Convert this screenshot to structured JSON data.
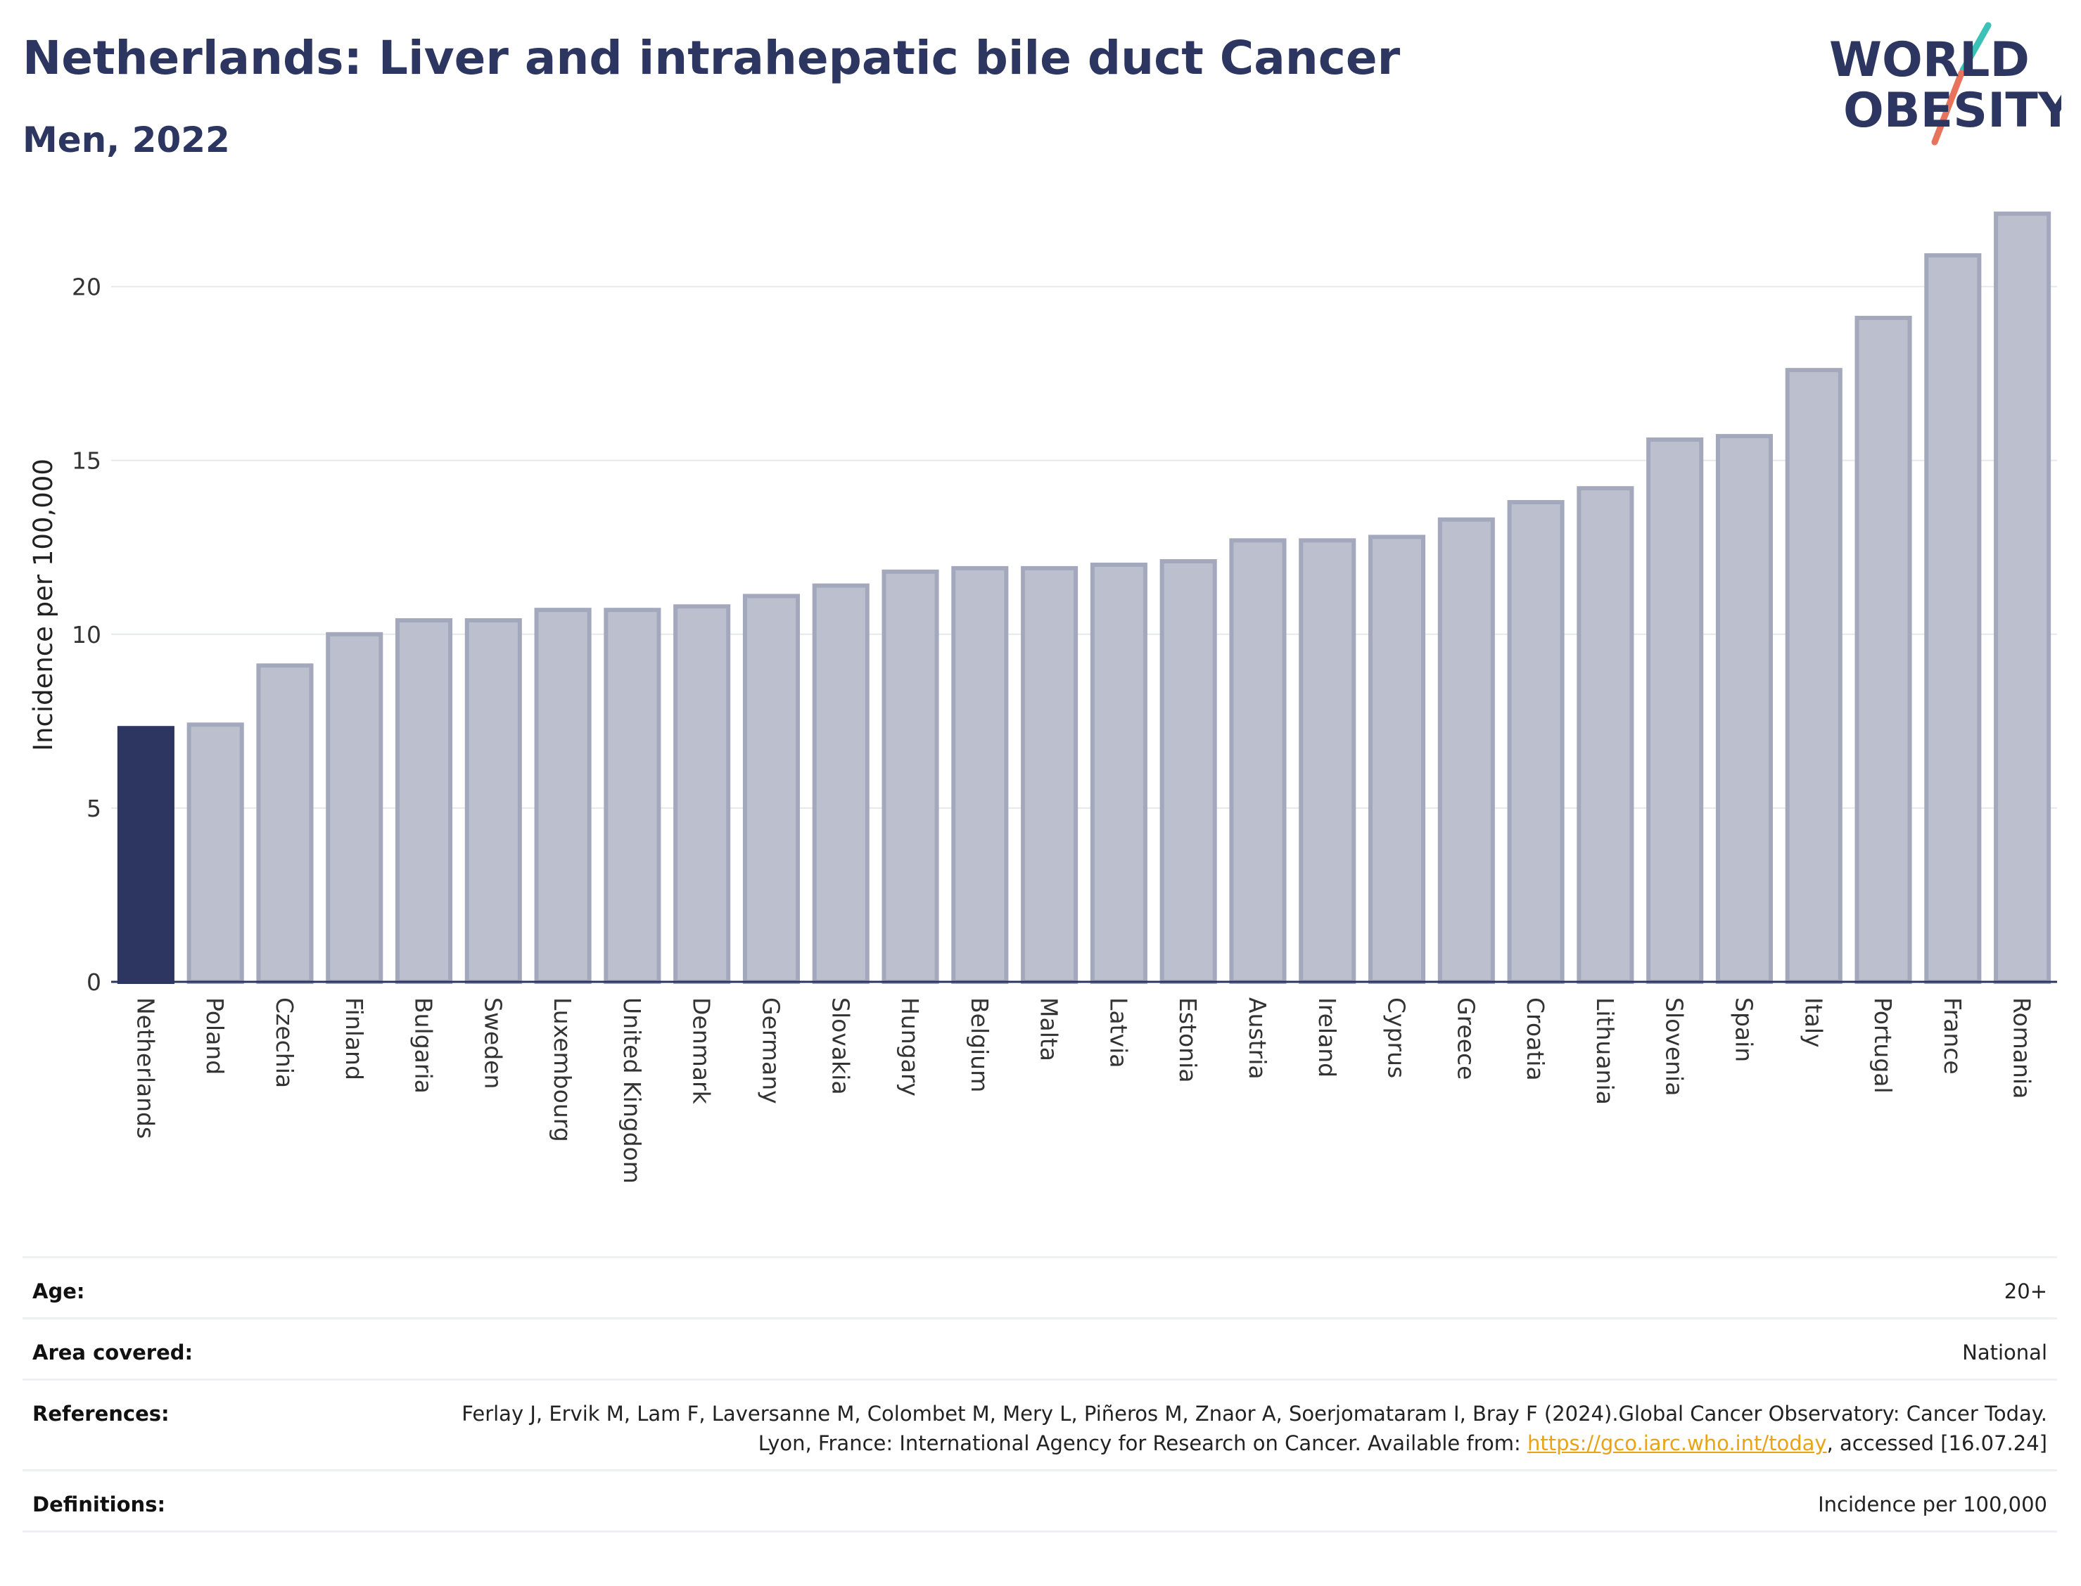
{
  "header": {
    "title": "Netherlands: Liver and intrahepatic bile duct Cancer",
    "subtitle": "Men, 2022"
  },
  "logo": {
    "line1": "WORLD",
    "line2": "OBESITY",
    "colors": {
      "text": "#2c3660",
      "teal": "#3cc1b7",
      "coral": "#e8725c"
    }
  },
  "chart_data": {
    "type": "bar",
    "title": "Netherlands: Liver and intrahepatic bile duct Cancer",
    "subtitle": "Men, 2022",
    "xlabel": "",
    "ylabel": "Incidence per 100,000",
    "ylim": [
      0,
      22.5
    ],
    "yticks": [
      0,
      5,
      10,
      15,
      20
    ],
    "grid": true,
    "highlight": "Netherlands",
    "colors": {
      "highlight": "#2c3660",
      "bar": "#bcc0ce",
      "bar_border": "#a3a8bd",
      "grid": "#e6e8ee"
    },
    "categories": [
      "Netherlands",
      "Poland",
      "Czechia",
      "Finland",
      "Bulgaria",
      "Sweden",
      "Luxembourg",
      "United Kingdom",
      "Denmark",
      "Germany",
      "Slovakia",
      "Hungary",
      "Belgium",
      "Malta",
      "Latvia",
      "Estonia",
      "Austria",
      "Ireland",
      "Cyprus",
      "Greece",
      "Croatia",
      "Lithuania",
      "Slovenia",
      "Spain",
      "Italy",
      "Portugal",
      "France",
      "Romania"
    ],
    "values": [
      7.3,
      7.4,
      9.1,
      10.0,
      10.4,
      10.4,
      10.7,
      10.7,
      10.8,
      11.1,
      11.4,
      11.8,
      11.9,
      11.9,
      12.0,
      12.1,
      12.7,
      12.7,
      12.8,
      13.3,
      13.8,
      14.2,
      15.6,
      15.7,
      17.6,
      19.1,
      20.9,
      22.1
    ]
  },
  "metadata": [
    {
      "key": "Age:",
      "value": "20+"
    },
    {
      "key": "Area covered:",
      "value": "National"
    },
    {
      "key": "References:",
      "value_before_link": "Ferlay J, Ervik M, Lam F, Laversanne M, Colombet M, Mery L, Piñeros M, Znaor A, Soerjomataram I, Bray F (2024).Global Cancer Observatory: Cancer Today. Lyon, France: International Agency for Research on Cancer. Available from: ",
      "link_text": "https://gco.iarc.who.int/today",
      "value_after_link": ", accessed [16.07.24]"
    },
    {
      "key": "Definitions:",
      "value": "Incidence per 100,000"
    }
  ]
}
